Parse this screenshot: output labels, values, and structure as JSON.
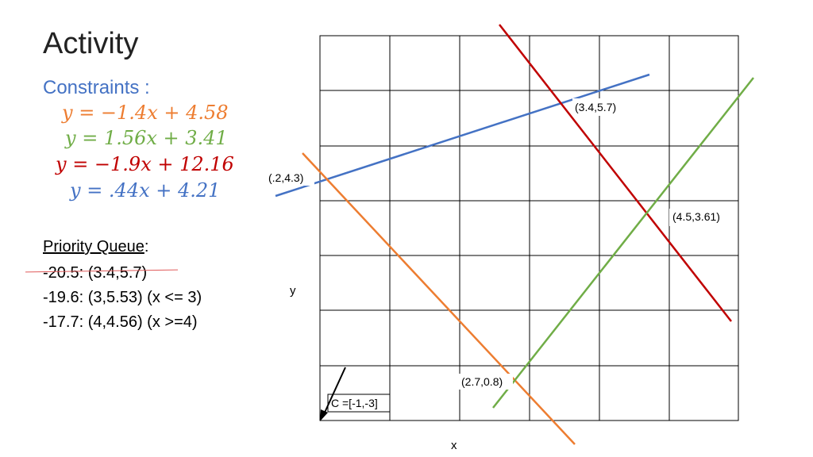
{
  "slide": {
    "title": "Activity",
    "constraints_heading": "Constraints :",
    "constraints": [
      {
        "text": "y = −1.4x + 4.58",
        "color": "#ed7d31"
      },
      {
        "text": "y = 1.56x + 3.41",
        "color": "#70ad47"
      },
      {
        "text": "y = −1.9x + 12.16",
        "color": "#c00000"
      },
      {
        "text": "y =  .44x + 4.21",
        "color": "#4472c4"
      }
    ],
    "priority_queue": {
      "heading": "Priority Queue",
      "heading_suffix": ":",
      "items": [
        {
          "text": "-20.5: (3.4,5.7)",
          "struck": true
        },
        {
          "text": "-19.6: (3,5.53) (x <= 3)",
          "struck": false
        },
        {
          "text": "-17.7: (4,4.56) (x >=4)",
          "struck": false
        }
      ]
    }
  },
  "graph": {
    "x_axis_label": "x",
    "y_axis_label": "y",
    "grid_cols": 6,
    "grid_rows": 7,
    "point_labels": [
      "(3.4,5.7)",
      "(.2,4.3)",
      "(4.5,3.61)",
      "(2.7,0.8)"
    ],
    "cost_label": "C =[-1,-3]"
  },
  "colors": {
    "orange": "#ed7d31",
    "green": "#70ad47",
    "red": "#c00000",
    "blue": "#4472c4",
    "heading_blue": "#4472c4"
  }
}
